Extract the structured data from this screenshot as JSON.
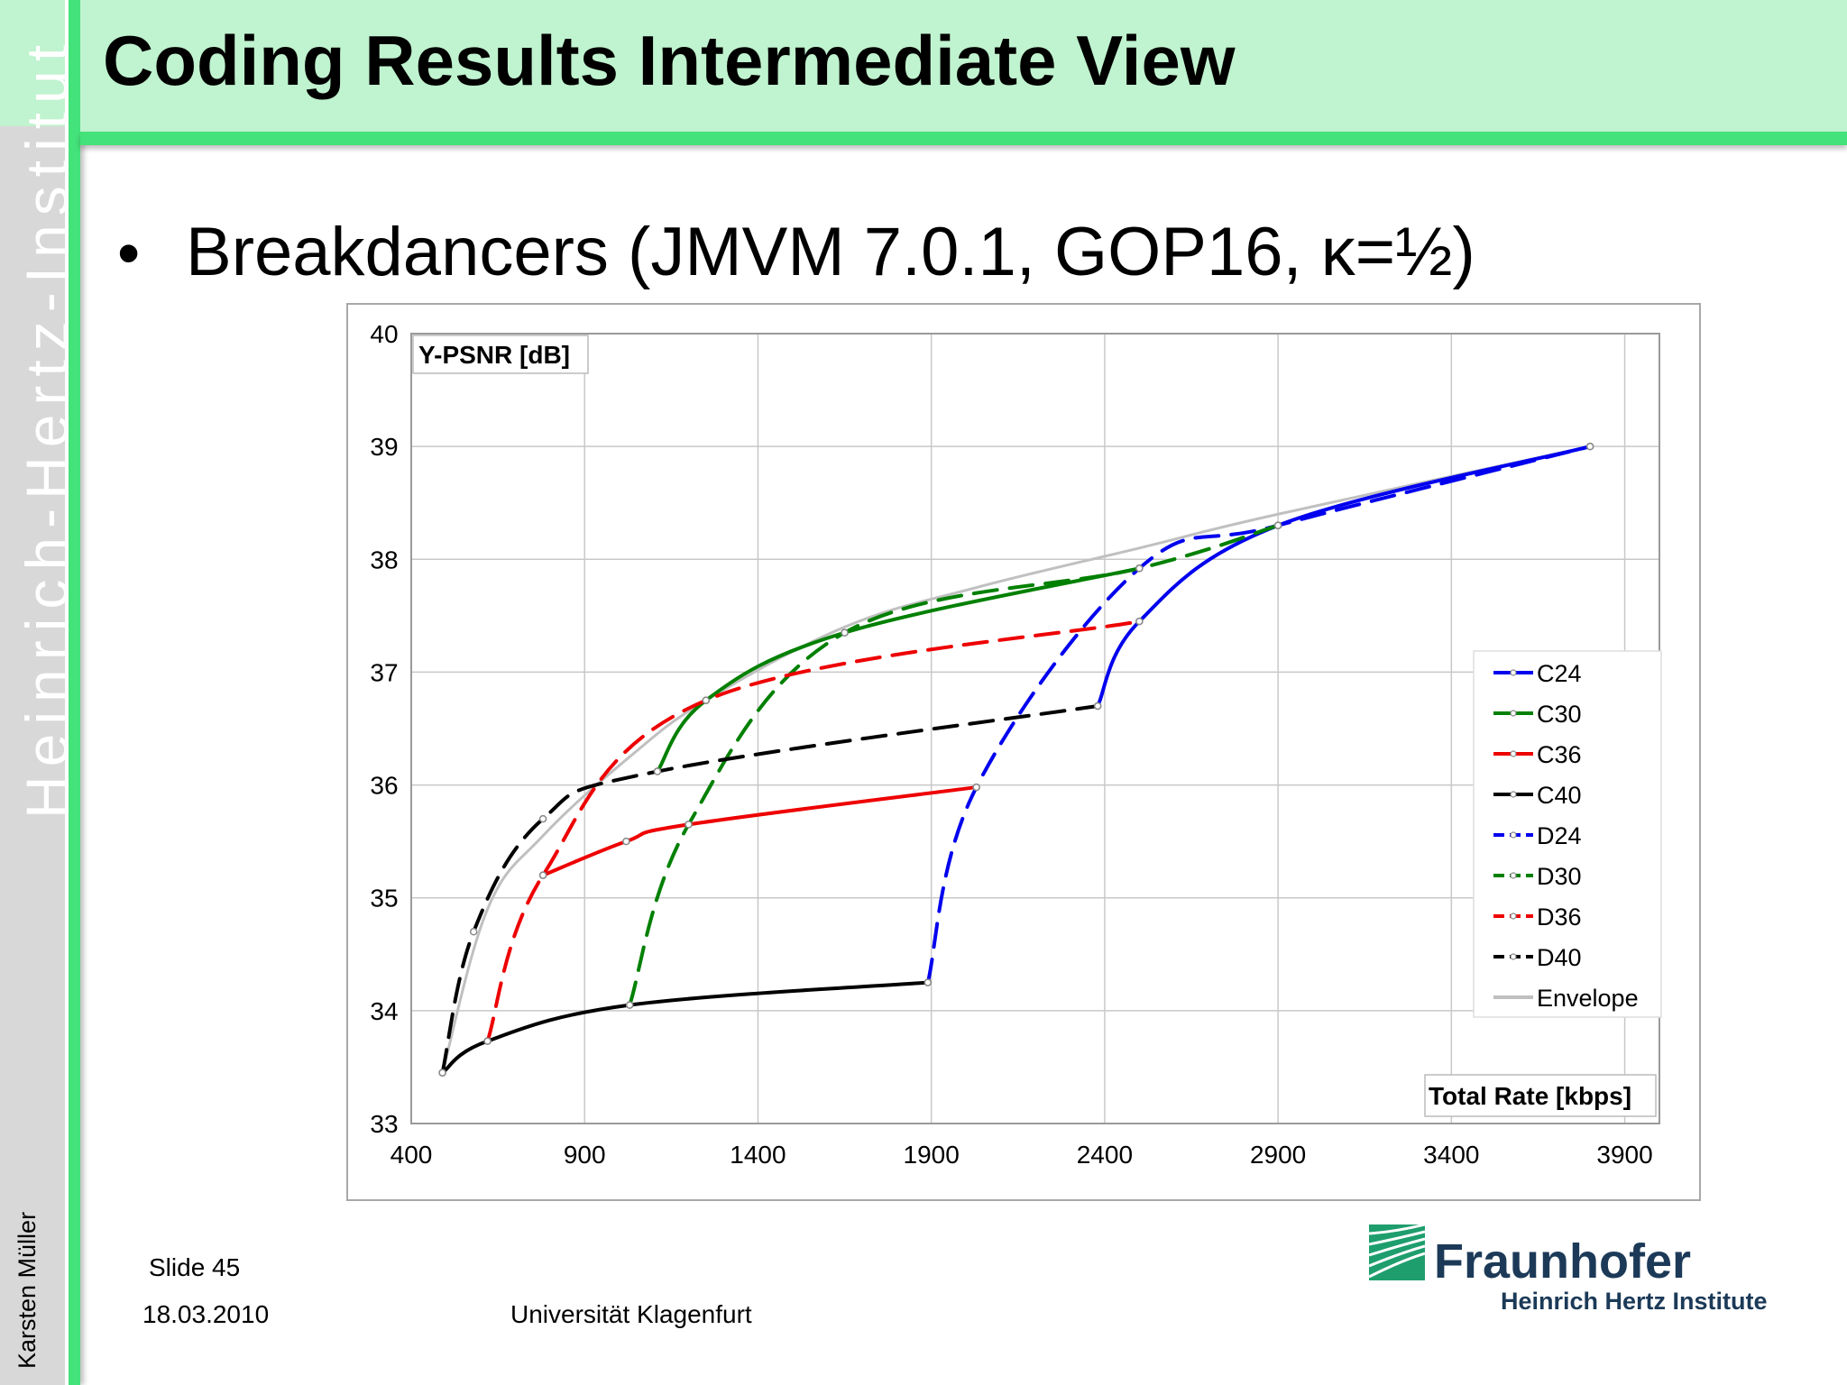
{
  "slide": {
    "title": "Coding Results Intermediate View",
    "bullet_symbol": "•",
    "bullet_text": "Breakdancers  (JMVM 7.0.1, GOP16, κ=½)",
    "sidebar_institute": "Heinrich-Hertz-Institut",
    "sidebar_author": "Karsten Müller",
    "footer": {
      "slide_number": "Slide 45",
      "date": "18.03.2010",
      "university": "Universität Klagenfurt"
    },
    "logo": {
      "name": "Fraunhofer",
      "subtitle": "Heinrich Hertz Institute"
    },
    "colors": {
      "title_band": "#c0f3cf",
      "accent_green": "#44e27a",
      "sidebar_gray": "#d8d8d8",
      "logo_green": "#1f9e6d",
      "logo_text": "#1c3a58"
    }
  },
  "chart_data": {
    "type": "line",
    "title": "",
    "xlabel": "Total Rate [kbps]",
    "ylabel": "Y-PSNR [dB]",
    "xlim": [
      400,
      4000
    ],
    "ylim": [
      33,
      40
    ],
    "xticks": [
      400,
      900,
      1400,
      1900,
      2400,
      2900,
      3400,
      3900
    ],
    "yticks": [
      33,
      34,
      35,
      36,
      37,
      38,
      39,
      40
    ],
    "grid": true,
    "legend_position": "right",
    "series": [
      {
        "name": "C24",
        "color": "#0000ee",
        "dashed": false,
        "x": [
          2380,
          2500,
          2900,
          3800
        ],
        "y": [
          36.7,
          37.45,
          38.3,
          39.0
        ]
      },
      {
        "name": "C30",
        "color": "#008000",
        "dashed": false,
        "x": [
          1110,
          1250,
          1650,
          2500
        ],
        "y": [
          36.12,
          36.75,
          37.35,
          37.92
        ]
      },
      {
        "name": "C36",
        "color": "#ee0000",
        "dashed": false,
        "x": [
          780,
          1020,
          1200,
          2030
        ],
        "y": [
          35.2,
          35.5,
          35.65,
          35.98
        ]
      },
      {
        "name": "C40",
        "color": "#000000",
        "dashed": false,
        "x": [
          490,
          620,
          1030,
          1890
        ],
        "y": [
          33.45,
          33.73,
          34.05,
          34.25
        ]
      },
      {
        "name": "D24",
        "color": "#0000ee",
        "dashed": true,
        "x": [
          1890,
          2030,
          2500,
          2900,
          3800
        ],
        "y": [
          34.25,
          35.98,
          37.92,
          38.3,
          39.0
        ]
      },
      {
        "name": "D30",
        "color": "#008000",
        "dashed": true,
        "x": [
          1030,
          1200,
          1650,
          2500,
          2900
        ],
        "y": [
          34.05,
          35.65,
          37.35,
          37.92,
          38.3
        ]
      },
      {
        "name": "D36",
        "color": "#ee0000",
        "dashed": true,
        "x": [
          620,
          780,
          1250,
          2500
        ],
        "y": [
          33.73,
          35.2,
          36.75,
          37.45
        ]
      },
      {
        "name": "D40",
        "color": "#000000",
        "dashed": true,
        "x": [
          490,
          580,
          780,
          1110,
          2380
        ],
        "y": [
          33.45,
          34.7,
          35.7,
          36.12,
          36.7
        ]
      },
      {
        "name": "Envelope",
        "color": "#c0c0c0",
        "dashed": false,
        "x": [
          490,
          620,
          780,
          1030,
          1250,
          1650,
          2030,
          2500,
          2900,
          3800
        ],
        "y": [
          33.45,
          34.9,
          35.55,
          36.25,
          36.75,
          37.4,
          37.75,
          38.1,
          38.4,
          39.0
        ]
      }
    ]
  }
}
